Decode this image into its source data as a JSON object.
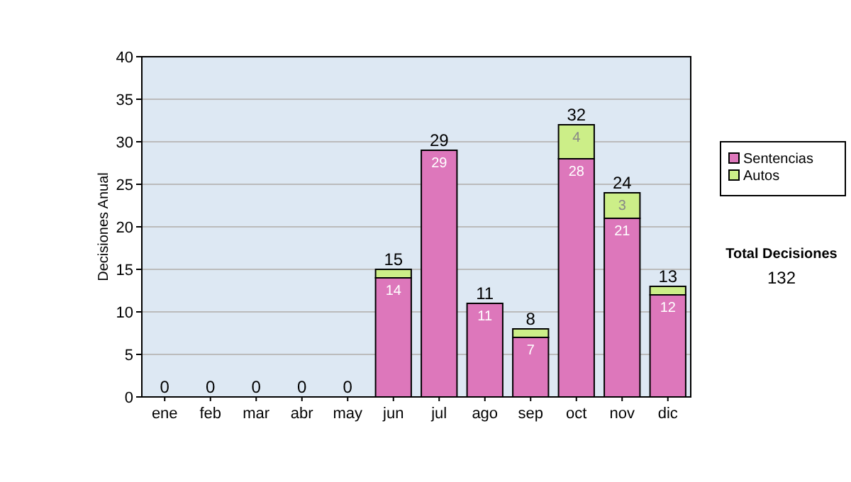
{
  "chart_data": {
    "type": "bar",
    "stacked": true,
    "ylabel": "Decisiones Anual",
    "categories": [
      "ene",
      "feb",
      "mar",
      "abr",
      "may",
      "jun",
      "jul",
      "ago",
      "sep",
      "oct",
      "nov",
      "dic"
    ],
    "series": [
      {
        "name": "Sentencias",
        "color": "#dd77bb",
        "values": [
          0,
          0,
          0,
          0,
          0,
          14,
          29,
          11,
          7,
          28,
          21,
          12
        ],
        "value_labels": [
          null,
          null,
          null,
          null,
          null,
          "14",
          "29",
          "11",
          "7",
          "28",
          "21",
          "12"
        ]
      },
      {
        "name": "Autos",
        "color": "#ccee88",
        "values": [
          0,
          0,
          0,
          0,
          0,
          1,
          0,
          0,
          1,
          4,
          3,
          1
        ],
        "value_labels": [
          null,
          null,
          null,
          null,
          null,
          null,
          null,
          null,
          null,
          "4",
          "3",
          null
        ]
      }
    ],
    "totals": [
      "0",
      "0",
      "0",
      "0",
      "0",
      "15",
      "29",
      "11",
      "8",
      "32",
      "24",
      "13"
    ],
    "ylim": [
      0,
      40
    ],
    "yticks": [
      0,
      5,
      10,
      15,
      20,
      25,
      30,
      35,
      40
    ],
    "grid": "y",
    "legend": "right",
    "annotations": [
      "Total Decisiones",
      "132"
    ]
  }
}
